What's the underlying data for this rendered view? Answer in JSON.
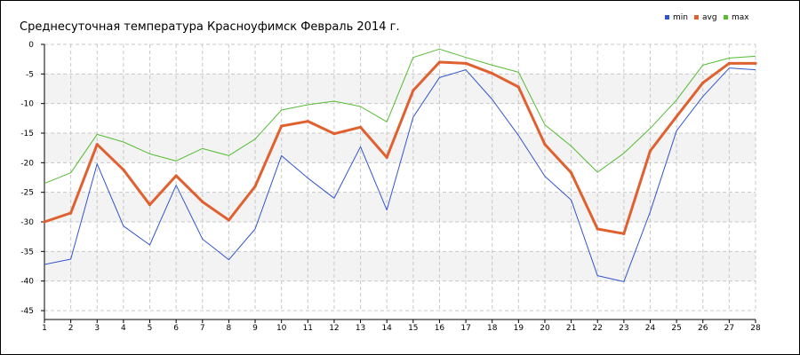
{
  "chart_data": {
    "type": "line",
    "title": "Среднесуточная температура Красноуфимск  Февраль 2014 г.",
    "xlabel": "",
    "ylabel": "",
    "x": [
      1,
      2,
      3,
      4,
      5,
      6,
      7,
      8,
      9,
      10,
      11,
      12,
      13,
      14,
      15,
      16,
      17,
      18,
      19,
      20,
      21,
      22,
      23,
      24,
      25,
      26,
      27,
      28
    ],
    "ylim": [
      -45,
      0
    ],
    "yticks": [
      0,
      -5,
      -10,
      -15,
      -20,
      -25,
      -30,
      -35,
      -40,
      -45
    ],
    "grid": true,
    "legend": "top-right",
    "series": [
      {
        "name": "min",
        "color": "#3355cc",
        "values": [
          -37.2,
          -36.3,
          -20.2,
          -30.7,
          -33.9,
          -23.8,
          -32.9,
          -36.4,
          -31.2,
          -18.8,
          -22.6,
          -26.0,
          -17.3,
          -28.0,
          -12.3,
          -5.6,
          -4.3,
          -9.3,
          -15.4,
          -22.3,
          -26.3,
          -39.1,
          -40.1,
          -28.3,
          -14.6,
          -8.8,
          -4.0,
          -4.3
        ]
      },
      {
        "name": "avg",
        "color": "#e06030",
        "values": [
          -30.0,
          -28.5,
          -16.9,
          -21.2,
          -27.1,
          -22.2,
          -26.6,
          -29.7,
          -24.0,
          -13.8,
          -13.0,
          -15.1,
          -14.0,
          -19.1,
          -7.8,
          -3.0,
          -3.2,
          -4.9,
          -7.2,
          -16.9,
          -21.7,
          -31.2,
          -32.0,
          -18.0,
          -12.2,
          -6.5,
          -3.2,
          -3.2
        ]
      },
      {
        "name": "max",
        "color": "#55bb33",
        "values": [
          -23.5,
          -21.7,
          -15.2,
          -16.5,
          -18.5,
          -19.7,
          -17.6,
          -18.8,
          -16.0,
          -11.1,
          -10.2,
          -9.6,
          -10.5,
          -13.1,
          -2.2,
          -0.8,
          -2.2,
          -3.5,
          -4.7,
          -13.6,
          -17.2,
          -21.6,
          -18.4,
          -14.2,
          -9.4,
          -3.5,
          -2.3,
          -2.0
        ]
      }
    ]
  }
}
